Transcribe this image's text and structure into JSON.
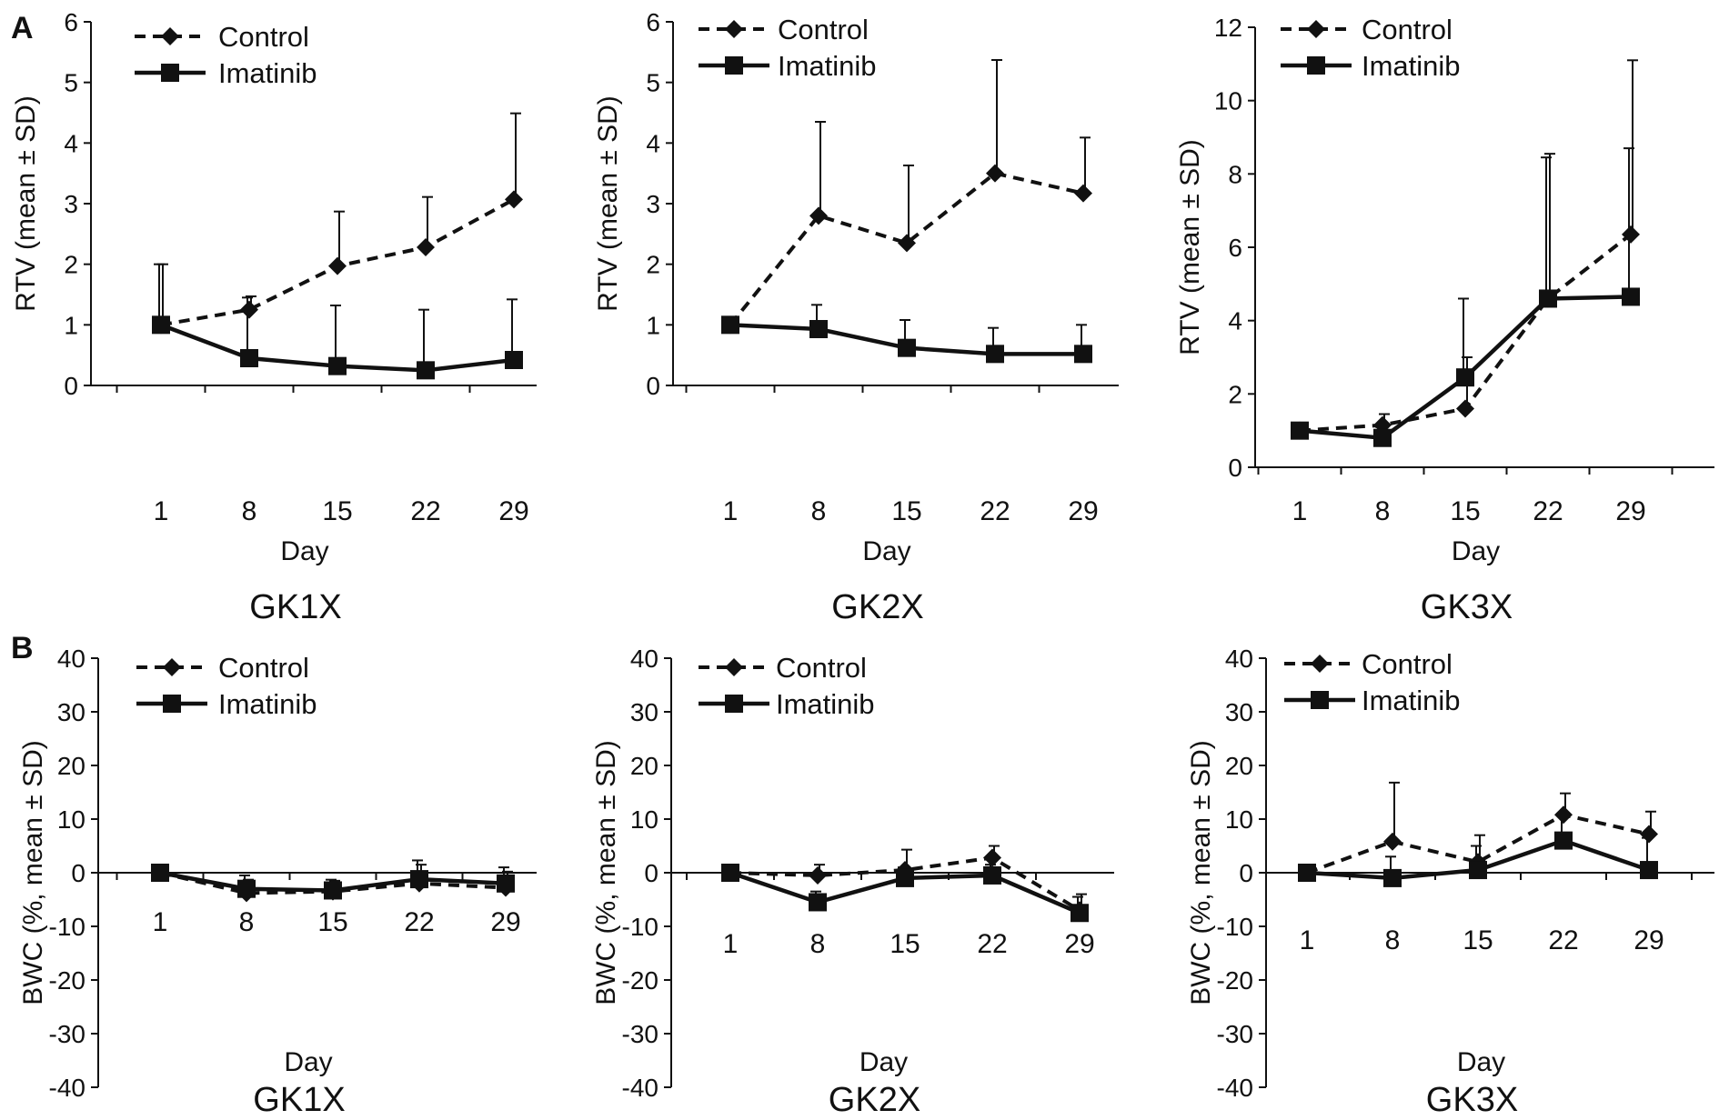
{
  "figure": {
    "panel_a_label": "A",
    "panel_b_label": "B",
    "legend_control": "Control",
    "legend_imatinib": "Imatinib",
    "colors": {
      "line": "#111111",
      "background": "#ffffff"
    }
  },
  "chart_data": [
    {
      "type": "line",
      "panel": "A",
      "title": "GK1X",
      "xlabel": "Day",
      "ylabel": "RTV (mean ± SD)",
      "x": [
        1,
        8,
        15,
        22,
        29
      ],
      "xticks": [
        "1",
        "8",
        "15",
        "22",
        "29"
      ],
      "ylim": [
        0,
        6
      ],
      "yticks": [
        "0",
        "1",
        "2",
        "3",
        "4",
        "5",
        "6"
      ],
      "series": [
        {
          "name": "Control",
          "style": "dashed",
          "marker": "diamond",
          "values": [
            1.0,
            1.25,
            1.97,
            2.28,
            3.07
          ],
          "sd": [
            1.0,
            0.22,
            0.9,
            0.83,
            1.42
          ]
        },
        {
          "name": "Imatinib",
          "style": "solid",
          "marker": "square",
          "values": [
            1.0,
            0.45,
            0.32,
            0.25,
            0.42
          ],
          "sd": [
            1.0,
            1.0,
            1.0,
            1.0,
            1.0
          ]
        }
      ]
    },
    {
      "type": "line",
      "panel": "A",
      "title": "GK2X",
      "xlabel": "Day",
      "ylabel": "RTV (mean ± SD)",
      "x": [
        1,
        8,
        15,
        22,
        29
      ],
      "xticks": [
        "1",
        "8",
        "15",
        "22",
        "29"
      ],
      "ylim": [
        0,
        6
      ],
      "yticks": [
        "0",
        "1",
        "2",
        "3",
        "4",
        "5",
        "6"
      ],
      "series": [
        {
          "name": "Control",
          "style": "dashed",
          "marker": "diamond",
          "values": [
            1.0,
            2.8,
            2.35,
            3.5,
            3.17
          ],
          "sd": [
            0,
            1.55,
            1.28,
            1.87,
            0.92
          ]
        },
        {
          "name": "Imatinib",
          "style": "solid",
          "marker": "square",
          "values": [
            1.0,
            0.93,
            0.62,
            0.52,
            0.52
          ],
          "sd": [
            0,
            0.4,
            0.46,
            0.43,
            0.48
          ]
        }
      ]
    },
    {
      "type": "line",
      "panel": "A",
      "title": "GK3X",
      "xlabel": "Day",
      "ylabel": "RTV (mean ± SD)",
      "x": [
        1,
        8,
        15,
        22,
        29
      ],
      "xticks": [
        "1",
        "8",
        "15",
        "22",
        "29"
      ],
      "ylim": [
        0,
        12
      ],
      "yticks": [
        "0",
        "2",
        "4",
        "6",
        "8",
        "10",
        "12"
      ],
      "series": [
        {
          "name": "Control",
          "style": "dashed",
          "marker": "diamond",
          "values": [
            1.0,
            1.15,
            1.6,
            4.6,
            6.35
          ],
          "sd": [
            0,
            0.3,
            1.4,
            3.95,
            4.75
          ]
        },
        {
          "name": "Imatinib",
          "style": "solid",
          "marker": "square",
          "values": [
            1.0,
            0.8,
            2.45,
            4.6,
            4.65
          ],
          "sd": [
            0,
            0.3,
            2.15,
            3.85,
            4.05
          ]
        }
      ]
    },
    {
      "type": "line",
      "panel": "B",
      "title": "GK1X",
      "xlabel": "Day",
      "ylabel": "BWC (%, mean ± SD)",
      "x": [
        1,
        8,
        15,
        22,
        29
      ],
      "xticks": [
        "1",
        "8",
        "15",
        "22",
        "29"
      ],
      "ylim": [
        -40,
        40
      ],
      "yticks": [
        "-40",
        "-30",
        "-20",
        "-10",
        "0",
        "10",
        "20",
        "30",
        "40"
      ],
      "series": [
        {
          "name": "Control",
          "style": "dashed",
          "marker": "diamond",
          "values": [
            0,
            -3.8,
            -3.5,
            -2.0,
            -2.8
          ],
          "sd": [
            1.5,
            2.5,
            2.0,
            3.5,
            3.0
          ]
        },
        {
          "name": "Imatinib",
          "style": "solid",
          "marker": "square",
          "values": [
            0,
            -3.0,
            -3.3,
            -1.2,
            -2.0
          ],
          "sd": [
            1.5,
            2.5,
            2.0,
            3.5,
            3.0
          ]
        }
      ]
    },
    {
      "type": "line",
      "panel": "B",
      "title": "GK2X",
      "xlabel": "Day",
      "ylabel": "BWC (%, mean ± SD)",
      "x": [
        1,
        8,
        15,
        22,
        29
      ],
      "xticks": [
        "1",
        "8",
        "15",
        "22",
        "29"
      ],
      "ylim": [
        -40,
        40
      ],
      "yticks": [
        "-40",
        "-30",
        "-20",
        "-10",
        "0",
        "10",
        "20",
        "30",
        "40"
      ],
      "series": [
        {
          "name": "Control",
          "style": "dashed",
          "marker": "diamond",
          "values": [
            0,
            -0.5,
            0.5,
            2.8,
            -7.0
          ],
          "sd": [
            0,
            2.0,
            3.8,
            2.2,
            3.0
          ]
        },
        {
          "name": "Imatinib",
          "style": "solid",
          "marker": "square",
          "values": [
            0,
            -5.5,
            -1.0,
            -0.5,
            -7.5
          ],
          "sd": [
            0,
            2.0,
            2.0,
            2.0,
            3.0
          ]
        }
      ]
    },
    {
      "type": "line",
      "panel": "B",
      "title": "GK3X",
      "xlabel": "Day",
      "ylabel": "BWC (%, mean ± SD)",
      "x": [
        1,
        8,
        15,
        22,
        29
      ],
      "xticks": [
        "1",
        "8",
        "15",
        "22",
        "29"
      ],
      "ylim": [
        -40,
        40
      ],
      "yticks": [
        "-40",
        "-30",
        "-20",
        "-10",
        "0",
        "10",
        "20",
        "30",
        "40"
      ],
      "series": [
        {
          "name": "Control",
          "style": "dashed",
          "marker": "diamond",
          "values": [
            0,
            5.8,
            2.0,
            10.8,
            7.2
          ],
          "sd": [
            0,
            11.0,
            5.0,
            4.0,
            4.2
          ]
        },
        {
          "name": "Imatinib",
          "style": "solid",
          "marker": "square",
          "values": [
            0,
            -1.0,
            0.5,
            6.0,
            0.5
          ],
          "sd": [
            0,
            4.0,
            4.5,
            5.0,
            6.0
          ]
        }
      ]
    }
  ]
}
